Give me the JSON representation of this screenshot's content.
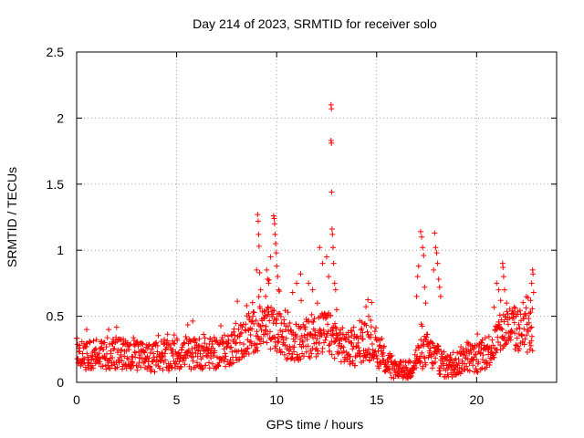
{
  "chart_data": {
    "type": "scatter",
    "title": "Day 214 of 2023, SRMTID for receiver solo",
    "xlabel": "GPS time / hours",
    "ylabel": "SRMTID / TECUs",
    "xlim": [
      0,
      24
    ],
    "ylim": [
      0,
      2.5
    ],
    "grid": true,
    "marker": "+",
    "marker_color": "#ff0000",
    "x_ticks": [
      {
        "value": 0,
        "label": "0"
      },
      {
        "value": 5,
        "label": "5"
      },
      {
        "value": 10,
        "label": "10"
      },
      {
        "value": 15,
        "label": "15"
      },
      {
        "value": 20,
        "label": "20"
      }
    ],
    "y_ticks": [
      {
        "value": 0,
        "label": "0"
      },
      {
        "value": 0.5,
        "label": "0.5"
      },
      {
        "value": 1,
        "label": "1"
      },
      {
        "value": 1.5,
        "label": "1.5"
      },
      {
        "value": 2,
        "label": "2"
      },
      {
        "value": 2.5,
        "label": "2.5"
      }
    ],
    "baseline_profile": [
      [
        0,
        0.2
      ],
      [
        1,
        0.22
      ],
      [
        2,
        0.22
      ],
      [
        3,
        0.2
      ],
      [
        4,
        0.19
      ],
      [
        5,
        0.21
      ],
      [
        6,
        0.22
      ],
      [
        7,
        0.22
      ],
      [
        7.5,
        0.24
      ],
      [
        8,
        0.3
      ],
      [
        8.5,
        0.33
      ],
      [
        9,
        0.4
      ],
      [
        9.5,
        0.42
      ],
      [
        10,
        0.38
      ],
      [
        10.5,
        0.32
      ],
      [
        11,
        0.3
      ],
      [
        11.5,
        0.33
      ],
      [
        12,
        0.35
      ],
      [
        12.5,
        0.38
      ],
      [
        13,
        0.32
      ],
      [
        13.5,
        0.25
      ],
      [
        14,
        0.25
      ],
      [
        14.5,
        0.33
      ],
      [
        15,
        0.25
      ],
      [
        15.5,
        0.15
      ],
      [
        16,
        0.08
      ],
      [
        16.5,
        0.08
      ],
      [
        17,
        0.18
      ],
      [
        17.5,
        0.25
      ],
      [
        18,
        0.18
      ],
      [
        18.5,
        0.12
      ],
      [
        19,
        0.14
      ],
      [
        19.5,
        0.2
      ],
      [
        20,
        0.18
      ],
      [
        20.5,
        0.22
      ],
      [
        21,
        0.32
      ],
      [
        21.5,
        0.42
      ],
      [
        22,
        0.4
      ],
      [
        22.5,
        0.38
      ],
      [
        22.8,
        0.4
      ]
    ],
    "spikes": [
      {
        "x": 9.05,
        "y": 1.27
      },
      {
        "x": 9.08,
        "y": 1.22
      },
      {
        "x": 9.1,
        "y": 1.12
      },
      {
        "x": 9.12,
        "y": 1.03
      },
      {
        "x": 9.15,
        "y": 0.83
      },
      {
        "x": 9.0,
        "y": 0.85
      },
      {
        "x": 9.2,
        "y": 0.7
      },
      {
        "x": 9.5,
        "y": 0.85
      },
      {
        "x": 9.55,
        "y": 0.78
      },
      {
        "x": 9.6,
        "y": 0.75
      },
      {
        "x": 9.45,
        "y": 0.65
      },
      {
        "x": 9.7,
        "y": 0.95
      },
      {
        "x": 9.85,
        "y": 1.26
      },
      {
        "x": 9.88,
        "y": 1.24
      },
      {
        "x": 9.9,
        "y": 1.2
      },
      {
        "x": 9.92,
        "y": 1.12
      },
      {
        "x": 9.95,
        "y": 1.05
      },
      {
        "x": 9.98,
        "y": 0.98
      },
      {
        "x": 10.0,
        "y": 0.88
      },
      {
        "x": 10.05,
        "y": 0.8
      },
      {
        "x": 10.1,
        "y": 0.7
      },
      {
        "x": 10.8,
        "y": 0.68
      },
      {
        "x": 11.0,
        "y": 0.75
      },
      {
        "x": 11.2,
        "y": 0.82
      },
      {
        "x": 11.6,
        "y": 0.75
      },
      {
        "x": 11.8,
        "y": 0.7
      },
      {
        "x": 12.15,
        "y": 1.02
      },
      {
        "x": 12.3,
        "y": 0.9
      },
      {
        "x": 12.5,
        "y": 0.95
      },
      {
        "x": 12.6,
        "y": 0.8
      },
      {
        "x": 12.72,
        "y": 2.1
      },
      {
        "x": 12.74,
        "y": 2.07
      },
      {
        "x": 12.72,
        "y": 1.83
      },
      {
        "x": 12.74,
        "y": 1.81
      },
      {
        "x": 12.75,
        "y": 1.44
      },
      {
        "x": 12.77,
        "y": 1.16
      },
      {
        "x": 12.79,
        "y": 1.12
      },
      {
        "x": 12.82,
        "y": 1.02
      },
      {
        "x": 12.85,
        "y": 0.9
      },
      {
        "x": 12.9,
        "y": 0.75
      },
      {
        "x": 12.95,
        "y": 0.7
      },
      {
        "x": 13.0,
        "y": 0.55
      },
      {
        "x": 17.2,
        "y": 1.14
      },
      {
        "x": 17.25,
        "y": 1.1
      },
      {
        "x": 17.3,
        "y": 1.02
      },
      {
        "x": 17.35,
        "y": 0.96
      },
      {
        "x": 17.1,
        "y": 0.88
      },
      {
        "x": 17.05,
        "y": 0.8
      },
      {
        "x": 17.4,
        "y": 0.72
      },
      {
        "x": 17.0,
        "y": 0.65
      },
      {
        "x": 17.45,
        "y": 0.6
      },
      {
        "x": 17.9,
        "y": 1.13
      },
      {
        "x": 17.95,
        "y": 1.02
      },
      {
        "x": 18.0,
        "y": 0.98
      },
      {
        "x": 18.05,
        "y": 0.9
      },
      {
        "x": 17.85,
        "y": 0.85
      },
      {
        "x": 18.1,
        "y": 0.78
      },
      {
        "x": 18.15,
        "y": 0.72
      },
      {
        "x": 18.2,
        "y": 0.65
      },
      {
        "x": 21.0,
        "y": 0.75
      },
      {
        "x": 21.1,
        "y": 0.7
      },
      {
        "x": 21.2,
        "y": 0.62
      },
      {
        "x": 21.3,
        "y": 0.9
      },
      {
        "x": 21.32,
        "y": 0.87
      },
      {
        "x": 21.35,
        "y": 0.8
      },
      {
        "x": 21.4,
        "y": 0.7
      },
      {
        "x": 21.5,
        "y": 0.6
      },
      {
        "x": 22.8,
        "y": 0.85
      },
      {
        "x": 22.82,
        "y": 0.82
      },
      {
        "x": 22.75,
        "y": 0.75
      },
      {
        "x": 22.85,
        "y": 0.68
      },
      {
        "x": 22.7,
        "y": 0.62
      },
      {
        "x": 8.5,
        "y": 0.58
      },
      {
        "x": 8.6,
        "y": 0.52
      },
      {
        "x": 14.6,
        "y": 0.5
      },
      {
        "x": 14.7,
        "y": 0.47
      },
      {
        "x": 1.6,
        "y": 0.4
      },
      {
        "x": 0.5,
        "y": 0.4
      }
    ],
    "noisy_samples_count": 1380
  }
}
